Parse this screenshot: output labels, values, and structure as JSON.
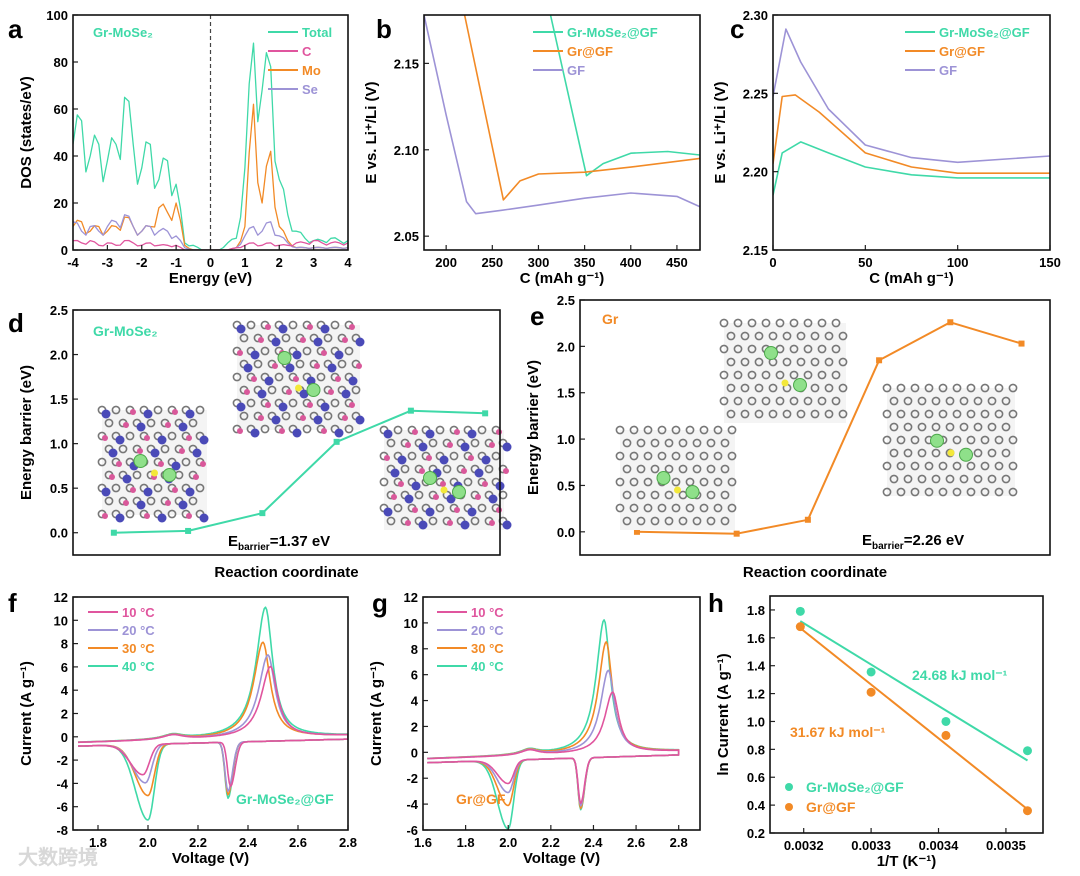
{
  "colors": {
    "teal": "#3fd9a8",
    "pink": "#e0559e",
    "orange": "#f28a26",
    "lavender": "#9d93d6",
    "black": "#111111"
  },
  "watermark": "大数跨境",
  "chart_data": [
    {
      "id": "a",
      "letter": "a",
      "type": "line",
      "xlabel": "Energy (eV)",
      "ylabel": "DOS (states/eV)",
      "xlim": [
        -4,
        4
      ],
      "ylim": [
        0,
        100
      ],
      "xticks": [
        -4,
        -3,
        -2,
        -1,
        0,
        1,
        2,
        3,
        4
      ],
      "xticklabels": [
        "-4",
        "-3",
        "-2",
        "-1",
        "0",
        "1",
        "2",
        "3",
        "4"
      ],
      "yticks": [
        0,
        20,
        40,
        60,
        80,
        100
      ],
      "yticklabels": [
        "0",
        "20",
        "40",
        "60",
        "80",
        "100"
      ],
      "annotation": "Gr-MoSe₂",
      "fermi_level": 0,
      "x": [
        -4,
        -3.75,
        -3.5,
        -3.25,
        -3,
        -2.75,
        -2.5,
        -2.25,
        -2,
        -1.75,
        -1.5,
        -1.25,
        -1,
        -0.75,
        -0.5,
        -0.25,
        0,
        0.25,
        0.5,
        0.75,
        1,
        1.25,
        1.5,
        1.75,
        2,
        2.25,
        2.5,
        2.75,
        3,
        3.25,
        3.5,
        3.75,
        4
      ],
      "series": [
        {
          "name": "Total",
          "color": "teal",
          "values": [
            45,
            55,
            40,
            45,
            38,
            45,
            65,
            45,
            35,
            45,
            30,
            38,
            28,
            3,
            2,
            0,
            0,
            0,
            3,
            5,
            35,
            88,
            68,
            78,
            30,
            15,
            8,
            5,
            4,
            4,
            5,
            4,
            4
          ]
        },
        {
          "name": "C",
          "color": "pink",
          "values": [
            4,
            3,
            4,
            2,
            3,
            2,
            4,
            3,
            2,
            3,
            2,
            2,
            2,
            0,
            0,
            0,
            0,
            0,
            0,
            1,
            2,
            3,
            2,
            3,
            2,
            2,
            3,
            3,
            4,
            3,
            3,
            3,
            3
          ]
        },
        {
          "name": "Mo",
          "color": "orange",
          "values": [
            10,
            12,
            8,
            10,
            8,
            10,
            14,
            10,
            8,
            10,
            18,
            16,
            20,
            2,
            0,
            0,
            0,
            0,
            0,
            1,
            10,
            62,
            20,
            42,
            10,
            4,
            1,
            1,
            1,
            1,
            1,
            1,
            1
          ]
        },
        {
          "name": "Se",
          "color": "lavender",
          "values": [
            12,
            8,
            10,
            8,
            10,
            12,
            15,
            10,
            8,
            10,
            8,
            8,
            6,
            1,
            0,
            0,
            0,
            0,
            0,
            1,
            6,
            10,
            8,
            12,
            6,
            3,
            1,
            1,
            1,
            1,
            1,
            1,
            1
          ]
        }
      ]
    },
    {
      "id": "b",
      "letter": "b",
      "type": "line",
      "xlabel": "C (mAh g⁻¹)",
      "ylabel": "E vs. Li⁺/Li (V)",
      "xlim": [
        176,
        475
      ],
      "ylim": [
        2.042,
        2.178
      ],
      "xticks": [
        200,
        250,
        300,
        350,
        400,
        450
      ],
      "xticklabels": [
        "200",
        "250",
        "300",
        "350",
        "400",
        "450"
      ],
      "yticks": [
        2.05,
        2.1,
        2.15
      ],
      "yticklabels": [
        "2.05",
        "2.10",
        "2.15"
      ],
      "series": [
        {
          "name": "Gr-MoSe₂@GF",
          "color": "teal",
          "points": [
            [
              313,
              2.178
            ],
            [
              352,
              2.085
            ],
            [
              370,
              2.092
            ],
            [
              400,
              2.098
            ],
            [
              440,
              2.099
            ],
            [
              475,
              2.097
            ]
          ]
        },
        {
          "name": "Gr@GF",
          "color": "orange",
          "points": [
            [
              220,
              2.178
            ],
            [
              262,
              2.071
            ],
            [
              280,
              2.082
            ],
            [
              300,
              2.086
            ],
            [
              350,
              2.087
            ],
            [
              400,
              2.09
            ],
            [
              475,
              2.095
            ]
          ]
        },
        {
          "name": "GF",
          "color": "lavender",
          "points": [
            [
              176,
              2.178
            ],
            [
              200,
              2.12
            ],
            [
              222,
              2.07
            ],
            [
              232,
              2.063
            ],
            [
              260,
              2.065
            ],
            [
              300,
              2.068
            ],
            [
              350,
              2.072
            ],
            [
              400,
              2.075
            ],
            [
              450,
              2.073
            ],
            [
              475,
              2.067
            ]
          ]
        }
      ]
    },
    {
      "id": "c",
      "letter": "c",
      "type": "line",
      "xlabel": "C (mAh g⁻¹)",
      "ylabel": "E vs. Li⁺/Li (V)",
      "xlim": [
        0,
        150
      ],
      "ylim": [
        2.15,
        2.3
      ],
      "xticks": [
        0,
        50,
        100,
        150
      ],
      "xticklabels": [
        "0",
        "50",
        "100",
        "150"
      ],
      "yticks": [
        2.15,
        2.2,
        2.25,
        2.3
      ],
      "yticklabels": [
        "2.15",
        "2.20",
        "2.25",
        "2.30"
      ],
      "series": [
        {
          "name": "Gr-MoSe₂@GF",
          "color": "teal",
          "points": [
            [
              0,
              2.185
            ],
            [
              5,
              2.212
            ],
            [
              15,
              2.219
            ],
            [
              30,
              2.212
            ],
            [
              50,
              2.203
            ],
            [
              75,
              2.198
            ],
            [
              100,
              2.196
            ],
            [
              150,
              2.196
            ]
          ]
        },
        {
          "name": "Gr@GF",
          "color": "orange",
          "points": [
            [
              0,
              2.205
            ],
            [
              5,
              2.248
            ],
            [
              12,
              2.249
            ],
            [
              25,
              2.238
            ],
            [
              50,
              2.212
            ],
            [
              75,
              2.203
            ],
            [
              100,
              2.199
            ],
            [
              150,
              2.199
            ]
          ]
        },
        {
          "name": "GF",
          "color": "lavender",
          "points": [
            [
              0,
              2.248
            ],
            [
              7,
              2.291
            ],
            [
              15,
              2.27
            ],
            [
              30,
              2.24
            ],
            [
              50,
              2.217
            ],
            [
              75,
              2.209
            ],
            [
              100,
              2.206
            ],
            [
              150,
              2.21
            ]
          ]
        }
      ]
    },
    {
      "id": "d",
      "letter": "d",
      "type": "line",
      "xlabel": "Reaction coordinate",
      "ylabel": "Energy barrier (eV)",
      "xlim": [
        0.45,
        6.2
      ],
      "ylim": [
        -0.25,
        2.5
      ],
      "xticks": [],
      "xticklabels": [],
      "yticks": [
        0,
        0.5,
        1.0,
        1.5,
        2.0,
        2.5
      ],
      "yticklabels": [
        "0.0",
        "0.5",
        "1.0",
        "1.5",
        "2.0",
        "2.5"
      ],
      "annotation": "Gr-MoSe₂",
      "barrier": {
        "symbol": "E",
        "subscript": "barrier",
        "value": "=1.37 eV"
      },
      "series": [
        {
          "name": "Gr-MoSe₂",
          "color": "teal",
          "markers": true,
          "points": [
            [
              1,
              0
            ],
            [
              2,
              0.02
            ],
            [
              3,
              0.22
            ],
            [
              4,
              1.02
            ],
            [
              5,
              1.37
            ],
            [
              6,
              1.34
            ]
          ]
        }
      ]
    },
    {
      "id": "e",
      "letter": "e",
      "type": "line",
      "xlabel": "Reaction coordinate",
      "ylabel": "Energy barrier (eV)",
      "xlim": [
        0.2,
        6.8
      ],
      "ylim": [
        -0.25,
        2.5
      ],
      "xticks": [],
      "xticklabels": [],
      "yticks": [
        0,
        0.5,
        1.0,
        1.5,
        2.0,
        2.5
      ],
      "yticklabels": [
        "0.0",
        "0.5",
        "1.0",
        "1.5",
        "2.0",
        "2.5"
      ],
      "annotation": "Gr",
      "barrier": {
        "symbol": "E",
        "subscript": "barrier",
        "value": "=2.26 eV"
      },
      "series": [
        {
          "name": "Gr",
          "color": "orange",
          "markers": true,
          "points": [
            [
              1,
              0
            ],
            [
              2.4,
              -0.02
            ],
            [
              3.4,
              0.13
            ],
            [
              4.4,
              1.85
            ],
            [
              5.4,
              2.26
            ],
            [
              6.4,
              2.03
            ]
          ]
        }
      ]
    },
    {
      "id": "f",
      "letter": "f",
      "type": "line",
      "xlabel": "Voltage (V)",
      "ylabel": "Current (A g⁻¹)",
      "xlim": [
        1.7,
        2.8
      ],
      "ylim": [
        -8,
        12
      ],
      "xticks": [
        1.8,
        2.0,
        2.2,
        2.4,
        2.6,
        2.8
      ],
      "xticklabels": [
        "1.8",
        "2.0",
        "2.2",
        "2.4",
        "2.6",
        "2.8"
      ],
      "yticks": [
        -8,
        -6,
        -4,
        -2,
        0,
        2,
        4,
        6,
        8,
        10,
        12
      ],
      "yticklabels": [
        "-8",
        "-6",
        "-4",
        "-2",
        "0",
        "2",
        "4",
        "6",
        "8",
        "10",
        "12"
      ],
      "annotation": "Gr-MoSe₂@GF",
      "cv": [
        {
          "name": "10 °C",
          "color": "pink",
          "anodic": [
            2.49,
            6.1
          ],
          "cathodic": [
            [
              2.33,
              -3.8
            ],
            [
              1.98,
              -2.6
            ]
          ]
        },
        {
          "name": "20 °C",
          "color": "lavender",
          "anodic": [
            2.48,
            7.1
          ],
          "cathodic": [
            [
              2.32,
              -4.2
            ],
            [
              1.99,
              -3.3
            ]
          ]
        },
        {
          "name": "30 °C",
          "color": "orange",
          "anodic": [
            2.46,
            8.2
          ],
          "cathodic": [
            [
              2.32,
              -4.5
            ],
            [
              2.0,
              -4.4
            ]
          ]
        },
        {
          "name": "40 °C",
          "color": "teal",
          "anodic": [
            2.47,
            11.2
          ],
          "cathodic": [
            [
              2.32,
              -4.8
            ],
            [
              2.0,
              -6.5
            ]
          ]
        }
      ]
    },
    {
      "id": "g",
      "letter": "g",
      "type": "line",
      "xlabel": "Voltage (V)",
      "ylabel": "Current (A g⁻¹)",
      "xlim": [
        1.6,
        2.9
      ],
      "ylim": [
        -6,
        12
      ],
      "xticks": [
        1.6,
        1.8,
        2.0,
        2.2,
        2.4,
        2.6,
        2.8
      ],
      "xticklabels": [
        "1.6",
        "1.8",
        "2.0",
        "2.2",
        "2.4",
        "2.6",
        "2.8"
      ],
      "yticks": [
        -6,
        -4,
        -2,
        0,
        2,
        4,
        6,
        8,
        10,
        12
      ],
      "yticklabels": [
        "-6",
        "-4",
        "-2",
        "0",
        "2",
        "4",
        "6",
        "8",
        "10",
        "12"
      ],
      "annotation": "Gr@GF",
      "cv": [
        {
          "name": "10 °C",
          "color": "pink",
          "anodic": [
            2.49,
            4.7
          ],
          "cathodic": [
            [
              2.34,
              -3.5
            ],
            [
              2.0,
              -1.8
            ]
          ]
        },
        {
          "name": "20 °C",
          "color": "lavender",
          "anodic": [
            2.47,
            6.4
          ],
          "cathodic": [
            [
              2.34,
              -3.7
            ],
            [
              2.0,
              -2.5
            ]
          ]
        },
        {
          "name": "30 °C",
          "color": "orange",
          "anodic": [
            2.46,
            8.6
          ],
          "cathodic": [
            [
              2.34,
              -3.9
            ],
            [
              2.0,
              -3.5
            ]
          ]
        },
        {
          "name": "40 °C",
          "color": "teal",
          "anodic": [
            2.45,
            10.3
          ],
          "cathodic": [
            [
              2.34,
              -4.0
            ],
            [
              2.0,
              -5.3
            ]
          ]
        }
      ]
    },
    {
      "id": "h",
      "letter": "h",
      "type": "scatter",
      "xlabel": "1/T (K⁻¹)",
      "ylabel": "ln Current (A g⁻¹)",
      "xlim": [
        0.00315,
        0.003555
      ],
      "ylim": [
        0.2,
        1.9
      ],
      "xticks": [
        0.0032,
        0.0033,
        0.0034,
        0.0035
      ],
      "xticklabels": [
        "0.0032",
        "0.0033",
        "0.0034",
        "0.0035"
      ],
      "yticks": [
        0.2,
        0.4,
        0.6,
        0.8,
        1.0,
        1.2,
        1.4,
        1.6,
        1.8
      ],
      "yticklabels": [
        "0.2",
        "0.4",
        "0.6",
        "0.8",
        "1.0",
        "1.2",
        "1.4",
        "1.6",
        "1.8"
      ],
      "series": [
        {
          "name": "Gr-MoSe₂@GF",
          "color": "teal",
          "points": [
            [
              0.003195,
              1.79
            ],
            [
              0.0033,
              1.355
            ],
            [
              0.003411,
              1.0
            ],
            [
              0.003532,
              0.79
            ]
          ],
          "fit": [
            [
              0.003195,
              1.72
            ],
            [
              0.003532,
              0.72
            ]
          ],
          "label": "24.68 kJ mol⁻¹"
        },
        {
          "name": "Gr@GF",
          "color": "orange",
          "points": [
            [
              0.003195,
              1.68
            ],
            [
              0.0033,
              1.21
            ],
            [
              0.003411,
              0.9
            ],
            [
              0.003532,
              0.36
            ]
          ],
          "fit": [
            [
              0.003195,
              1.67
            ],
            [
              0.003532,
              0.37
            ]
          ],
          "label": "31.67 kJ mol⁻¹"
        }
      ]
    }
  ]
}
